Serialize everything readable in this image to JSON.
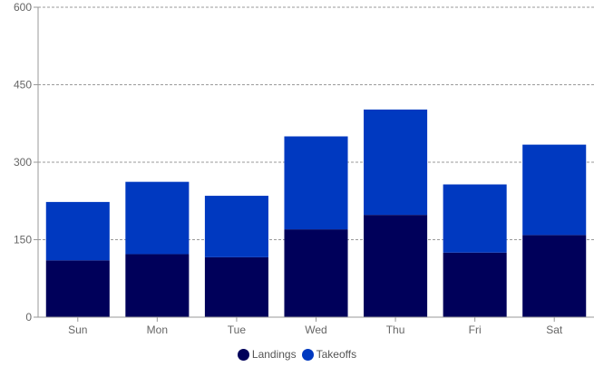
{
  "chart_data": {
    "type": "bar",
    "stacked": true,
    "categories": [
      "Sun",
      "Mon",
      "Tue",
      "Wed",
      "Thu",
      "Fri",
      "Sat"
    ],
    "series": [
      {
        "name": "Landings",
        "color": "#00005a",
        "values": [
          110,
          122,
          116,
          170,
          198,
          125,
          159
        ]
      },
      {
        "name": "Takeoffs",
        "color": "#0039c0",
        "values": [
          113,
          140,
          119,
          180,
          204,
          132,
          175
        ]
      }
    ],
    "ylim": [
      0,
      600
    ],
    "yticks": [
      "0",
      "150",
      "300",
      "450",
      "600"
    ],
    "grid": true,
    "legend_position": "bottom",
    "title": "",
    "xlabel": "",
    "ylabel": ""
  }
}
